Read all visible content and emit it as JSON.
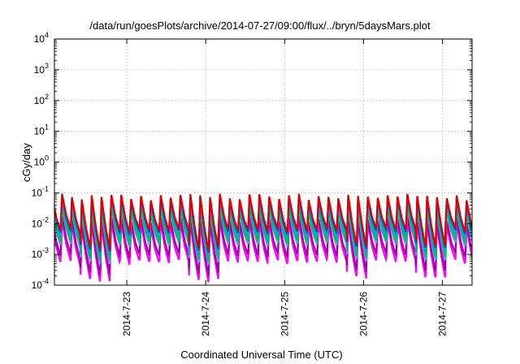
{
  "chart_data": {
    "type": "line",
    "title": "/data/run/goesPlots/archive/2014-07-27/09:00/flux/../bryn/5daysMars.plot",
    "xlabel": "Coordinated Universal Time (UTC)",
    "ylabel": "cGy/day",
    "yscale": "log",
    "ylim": [
      0.0001,
      10000
    ],
    "y_ticks": [
      {
        "base": "10",
        "exp": "-4"
      },
      {
        "base": "10",
        "exp": "-3"
      },
      {
        "base": "10",
        "exp": "-2"
      },
      {
        "base": "10",
        "exp": "-1"
      },
      {
        "base": "10",
        "exp": "0"
      },
      {
        "base": "10",
        "exp": "1"
      },
      {
        "base": "10",
        "exp": "2"
      },
      {
        "base": "10",
        "exp": "3"
      },
      {
        "base": "10",
        "exp": "4"
      }
    ],
    "xlim": [
      "2014-07-22T02:00",
      "2014-07-27T09:00"
    ],
    "x_ticks": [
      "2014-7-23",
      "2014-7-24",
      "2014-7-25",
      "2014-7-26",
      "2014-7-27"
    ],
    "x_tick_dates": [
      "2014-07-23T00:00",
      "2014-07-24T00:00",
      "2014-07-25T00:00",
      "2014-07-26T00:00",
      "2014-07-27T00:00"
    ],
    "grid": true,
    "legend": "none",
    "pattern": {
      "cycle_hours": 3,
      "note_peaks_per_series_approx": "sawtooth decay, roughly 1.6 decades per cycle",
      "dips": [
        "2014-07-22T14:00",
        "2014-07-23T23:00",
        "2014-07-25T22:00",
        "2014-07-26T20:00"
      ]
    },
    "series": [
      {
        "color": "#e00000",
        "peak": 0.075,
        "trough": 0.006
      },
      {
        "color": "#2040ff",
        "peak": 0.065,
        "trough": 0.005
      },
      {
        "color": "#00b0b0",
        "peak": 0.045,
        "trough": 0.0035
      },
      {
        "color": "#00c060",
        "peak": 0.032,
        "trough": 0.0025
      },
      {
        "color": "#60a0ff",
        "peak": 0.028,
        "trough": 0.002
      },
      {
        "color": "#a000a0",
        "peak": 0.014,
        "trough": 0.0009
      },
      {
        "color": "#ff00ff",
        "peak": 0.01,
        "trough": 0.00055
      }
    ]
  }
}
